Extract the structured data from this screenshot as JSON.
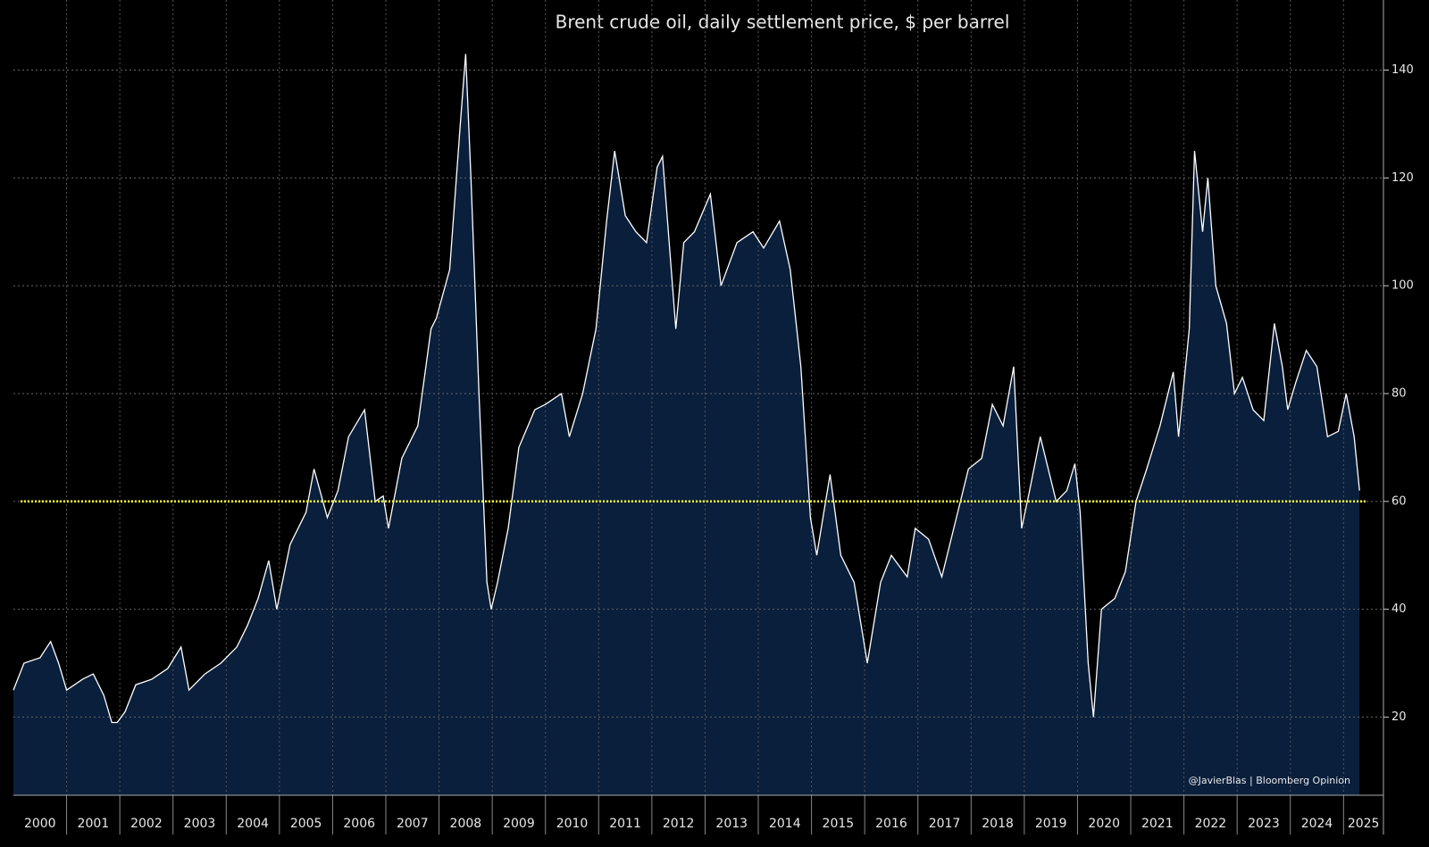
{
  "chart_data": {
    "type": "area",
    "title": "Brent crude oil, daily settlement price, $ per barrel",
    "annotation": "@JavierBlas | Bloomberg Opinion",
    "x": [
      2000.0,
      2000.2,
      2000.5,
      2000.7,
      2000.85,
      2001.0,
      2001.3,
      2001.5,
      2001.7,
      2001.85,
      2001.95,
      2002.1,
      2002.3,
      2002.6,
      2002.9,
      2003.15,
      2003.3,
      2003.6,
      2003.9,
      2004.2,
      2004.4,
      2004.6,
      2004.8,
      2004.95,
      2005.2,
      2005.5,
      2005.65,
      2005.9,
      2006.1,
      2006.3,
      2006.6,
      2006.8,
      2006.95,
      2007.05,
      2007.3,
      2007.6,
      2007.85,
      2007.95,
      2008.2,
      2008.4,
      2008.5,
      2008.6,
      2008.75,
      2008.9,
      2008.98,
      2009.1,
      2009.3,
      2009.5,
      2009.8,
      2010.0,
      2010.3,
      2010.45,
      2010.7,
      2010.95,
      2011.15,
      2011.3,
      2011.5,
      2011.7,
      2011.9,
      2012.1,
      2012.2,
      2012.45,
      2012.6,
      2012.8,
      2013.1,
      2013.3,
      2013.6,
      2013.9,
      2014.1,
      2014.4,
      2014.6,
      2014.8,
      2014.98,
      2015.1,
      2015.35,
      2015.55,
      2015.8,
      2015.95,
      2016.05,
      2016.3,
      2016.5,
      2016.8,
      2016.95,
      2017.2,
      2017.45,
      2017.7,
      2017.95,
      2018.2,
      2018.4,
      2018.6,
      2018.8,
      2018.95,
      2019.1,
      2019.3,
      2019.6,
      2019.8,
      2019.95,
      2020.05,
      2020.2,
      2020.3,
      2020.45,
      2020.7,
      2020.9,
      2021.1,
      2021.3,
      2021.55,
      2021.8,
      2021.9,
      2022.1,
      2022.2,
      2022.35,
      2022.45,
      2022.6,
      2022.8,
      2022.95,
      2023.1,
      2023.3,
      2023.5,
      2023.7,
      2023.85,
      2023.95,
      2024.1,
      2024.3,
      2024.5,
      2024.7,
      2024.9,
      2025.05,
      2025.2,
      2025.3
    ],
    "series": [
      {
        "name": "Brent",
        "color": "#ffffff",
        "fill": "#0a1f3c",
        "values": [
          25,
          30,
          31,
          34,
          30,
          25,
          27,
          28,
          24,
          19,
          19,
          21,
          26,
          27,
          29,
          33,
          25,
          28,
          30,
          33,
          37,
          42,
          49,
          40,
          52,
          58,
          66,
          57,
          62,
          72,
          77,
          60,
          61,
          55,
          68,
          74,
          92,
          94,
          103,
          130,
          143,
          120,
          80,
          45,
          40,
          45,
          55,
          70,
          77,
          78,
          80,
          72,
          80,
          92,
          112,
          125,
          113,
          110,
          108,
          122,
          124,
          92,
          108,
          110,
          117,
          100,
          108,
          110,
          107,
          112,
          103,
          85,
          57,
          50,
          65,
          50,
          45,
          36,
          30,
          45,
          50,
          46,
          55,
          53,
          46,
          56,
          66,
          68,
          78,
          74,
          85,
          55,
          62,
          72,
          60,
          62,
          67,
          58,
          30,
          20,
          40,
          42,
          47,
          60,
          66,
          74,
          84,
          72,
          92,
          125,
          110,
          120,
          100,
          93,
          80,
          83,
          77,
          75,
          93,
          85,
          77,
          82,
          88,
          85,
          72,
          73,
          80,
          72,
          62
        ]
      }
    ],
    "reference_line": {
      "value": 60,
      "color": "#ffff33"
    },
    "xlim": [
      2000,
      2025.75
    ],
    "xticks": [
      2000,
      2001,
      2002,
      2003,
      2004,
      2005,
      2006,
      2007,
      2008,
      2009,
      2010,
      2011,
      2012,
      2013,
      2014,
      2015,
      2016,
      2017,
      2018,
      2019,
      2020,
      2021,
      2022,
      2023,
      2024,
      2025
    ],
    "ylim": [
      5.5,
      153
    ],
    "yticks": [
      20,
      40,
      60,
      80,
      100,
      120,
      140
    ],
    "grid": true
  }
}
